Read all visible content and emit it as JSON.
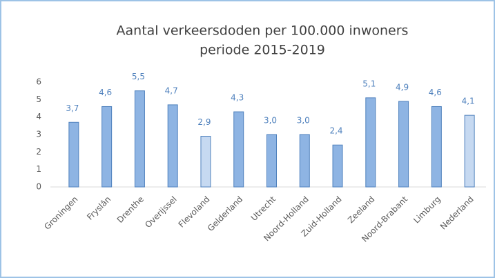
{
  "chart_data": {
    "type": "bar",
    "title": "Aantal verkeersdoden per 100.000  inwoners",
    "subtitle": "periode 2015-2019",
    "categories": [
      "Groningen",
      "Fryslân",
      "Drenthe",
      "Overijssel",
      "Flevoland",
      "Gelderland",
      "Utrecht",
      "Noord-Holland",
      "Zuid-Holland",
      "Zeeland",
      "Noord-Brabant",
      "Limburg",
      "Nederland"
    ],
    "values": [
      3.7,
      4.6,
      5.5,
      4.7,
      2.9,
      4.3,
      3.0,
      3.0,
      2.4,
      5.1,
      4.9,
      4.6,
      4.1
    ],
    "value_labels": [
      "3,7",
      "4,6",
      "5,5",
      "4,7",
      "2,9",
      "4,3",
      "3,0",
      "3,0",
      "2,4",
      "5,1",
      "4,9",
      "4,6",
      "4,1"
    ],
    "colors": [
      "#8eb4e3",
      "#8eb4e3",
      "#8eb4e3",
      "#8eb4e3",
      "#c6d9f1",
      "#8eb4e3",
      "#8eb4e3",
      "#8eb4e3",
      "#8eb4e3",
      "#8eb4e3",
      "#8eb4e3",
      "#8eb4e3",
      "#c6d9f1"
    ],
    "ylim": [
      0,
      6
    ],
    "yticks": [
      0,
      1,
      2,
      3,
      4,
      5,
      6
    ],
    "grid": false
  }
}
